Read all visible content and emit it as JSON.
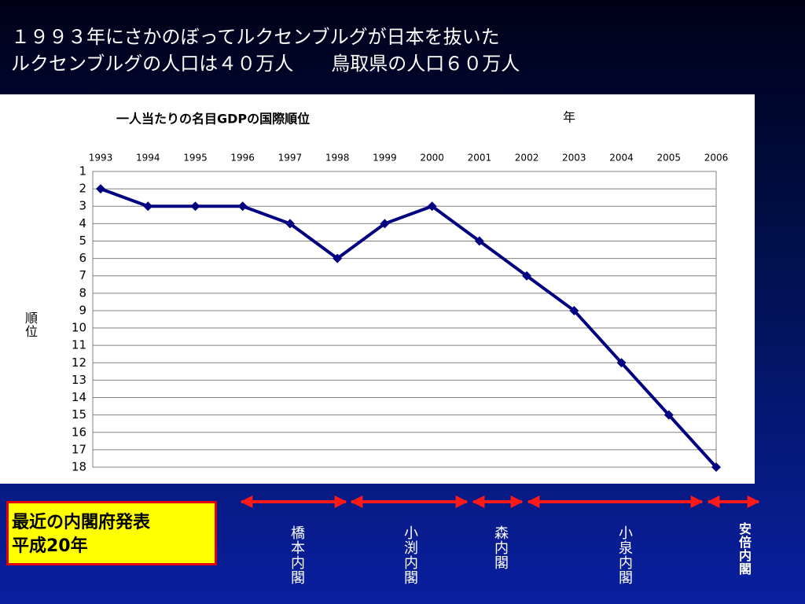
{
  "header": {
    "lines": [
      "１９９３年にさかのぼってルクセンブルグが日本を抜いた",
      "ルクセンブルグの人口は４０万人　　鳥取県の人口６０万人"
    ]
  },
  "chart_data": {
    "type": "line",
    "title": "一人当たりの名目GDPの国際順位",
    "x_label": "年",
    "y_label": "順位",
    "categories": [
      "1993",
      "1994",
      "1995",
      "1996",
      "1997",
      "1998",
      "1999",
      "2000",
      "2001",
      "2002",
      "2003",
      "2004",
      "2005",
      "2006"
    ],
    "values": [
      2,
      3,
      3,
      3,
      4,
      6,
      4,
      3,
      5,
      7,
      9,
      12,
      15,
      18
    ],
    "color": "#000080",
    "ylim": [
      1,
      18
    ],
    "inverted": true,
    "yticks": [
      1,
      2,
      3,
      4,
      5,
      6,
      7,
      8,
      9,
      10,
      11,
      12,
      13,
      14,
      15,
      16,
      17,
      18
    ],
    "grid": true
  },
  "note_box": {
    "lines": [
      "最近の内閣府発表",
      "平成20年"
    ]
  },
  "cabinets": [
    "橋本内閣",
    "小渕内閣",
    "森内閣",
    "小泉内閣",
    "安倍内閣"
  ]
}
